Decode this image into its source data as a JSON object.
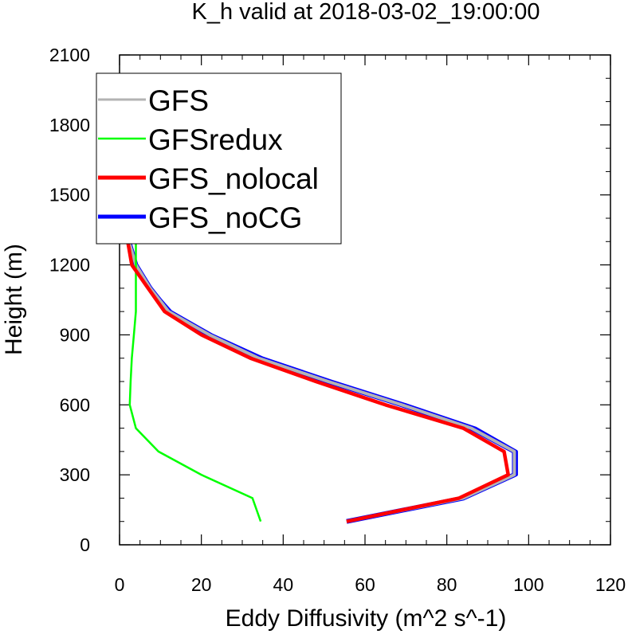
{
  "chart_data": {
    "type": "line",
    "title": "K_h valid at 2018-03-02_19:00:00",
    "xlabel": "Eddy Diffusivity (m^2 s^-1)",
    "ylabel": "Height (m)",
    "xlim": [
      0,
      120
    ],
    "ylim": [
      0,
      2100
    ],
    "x_ticks": [
      0,
      20,
      40,
      60,
      80,
      100,
      120
    ],
    "y_ticks": [
      0,
      300,
      600,
      900,
      1200,
      1500,
      1800,
      2100
    ],
    "x_tick_labels": [
      "0",
      "20",
      "40",
      "60",
      "80",
      "100",
      "120"
    ],
    "y_tick_labels": [
      "0",
      "300",
      "600",
      "900",
      "1200",
      "1500",
      "1800",
      "2100"
    ],
    "grid": false,
    "legend_position": "top-left",
    "series": [
      {
        "name": "GFS",
        "color": "#b3b3b3",
        "heights": [
          100,
          200,
          300,
          400,
          500,
          600,
          700,
          800,
          900,
          1000,
          1100,
          1200,
          1300,
          1400,
          1500,
          1600,
          1700,
          1800,
          1900,
          2000
        ],
        "values": [
          55.5,
          84,
          96.5,
          96.5,
          86,
          69,
          51,
          34,
          22,
          12,
          7.5,
          4,
          2.3,
          2,
          2,
          2,
          2.2,
          2.5,
          2.7,
          3
        ]
      },
      {
        "name": "GFSredux",
        "color": "#00ff00",
        "heights": [
          100,
          200,
          300,
          400,
          500,
          600,
          700,
          800,
          900,
          1000,
          1100,
          1200,
          1300,
          1400,
          1500,
          1600,
          1700,
          1800,
          1900,
          2000
        ],
        "values": [
          34.5,
          32.5,
          20,
          9.5,
          4,
          2.5,
          2.7,
          3,
          3.5,
          4,
          4,
          4,
          4,
          3.8,
          3.8,
          3.8,
          4,
          4.2,
          4.3,
          4.5
        ]
      },
      {
        "name": "GFS_nolocal",
        "color": "#ff0000",
        "heights": [
          100,
          200,
          300,
          400,
          500,
          600,
          700,
          800,
          900,
          1000,
          1100,
          1200,
          1300,
          1400,
          1500,
          1600,
          1700,
          1800,
          1900,
          2000
        ],
        "values": [
          55.5,
          83,
          95,
          94,
          84,
          65,
          48,
          32,
          20,
          11,
          7,
          3,
          2,
          1.8,
          1.8,
          1.8,
          2,
          2.3,
          2.6,
          3
        ]
      },
      {
        "name": "GFS_noCG",
        "color": "#0000ff",
        "heights": [
          100,
          200,
          300,
          400,
          500,
          600,
          700,
          800,
          900,
          1000,
          1100,
          1200,
          1300,
          1400,
          1500,
          1600,
          1700,
          1800,
          1900,
          2000
        ],
        "values": [
          55.5,
          84,
          97,
          97,
          87,
          70,
          52,
          35,
          22.5,
          12.5,
          7.5,
          3.5,
          2,
          1.5,
          1.3,
          1.2,
          1.2,
          1.3,
          1.3,
          1.5
        ]
      }
    ]
  }
}
